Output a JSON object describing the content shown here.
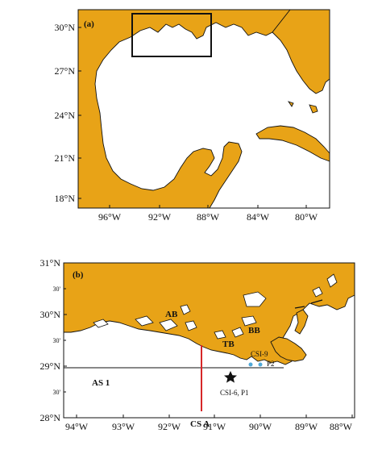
{
  "panel_a": {
    "label": "(a)",
    "lat_ticks": [
      "30°N",
      "27°N",
      "24°N",
      "21°N",
      "18°N"
    ],
    "lon_ticks": [
      "96°W",
      "92°W",
      "88°W",
      "84°W",
      "80°W"
    ]
  },
  "panel_b": {
    "label": "(b)",
    "lat_ticks": [
      "31°N",
      "30'",
      "30°N",
      "30'",
      "29°N",
      "30'",
      "28°N"
    ],
    "lon_ticks": [
      "94°W",
      "93°W",
      "92°W",
      "91°W",
      "90°W",
      "89°W",
      "88°W"
    ],
    "places": {
      "ab": "AB",
      "tb": "TB",
      "bb": "BB",
      "csi9": "CSI-9",
      "p2": "P2",
      "as1": "AS 1",
      "csa": "CS A",
      "csi6": "CSI-6, P1"
    }
  },
  "colors": {
    "land": "#E8A317",
    "transect": "#D62728",
    "station": "#4FA8D8",
    "frame": "#111111"
  }
}
